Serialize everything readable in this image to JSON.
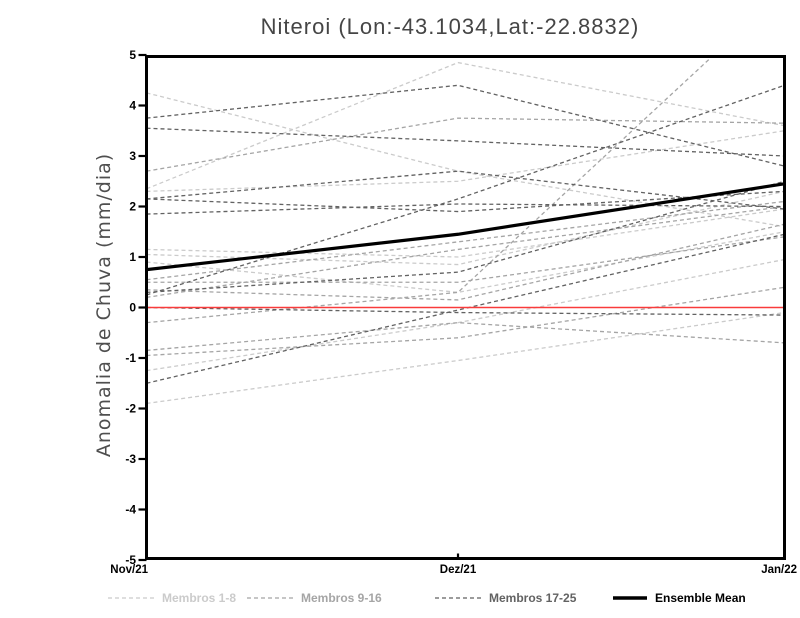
{
  "chart_data": {
    "type": "line",
    "title": "Niteroi (Lon:-43.1034,Lat:-22.8832)",
    "ylabel": "Anomalia de Chuva (mm/dia)",
    "x_categories": [
      "Nov/21",
      "Dez/21",
      "Jan/22"
    ],
    "ylim": [
      -5,
      5
    ],
    "y_ticks": [
      5,
      4,
      3,
      2,
      1,
      0,
      -1,
      -2,
      -3,
      -4,
      -5
    ],
    "grid": false,
    "legend_position": "bottom",
    "frame_color": "#000000",
    "zero_line_color": "#f93b3b",
    "groups": [
      {
        "name": "Membros 1-8",
        "color": "#cbcbcb",
        "style": "dashed"
      },
      {
        "name": "Membros 9-16",
        "color": "#a5a5a5",
        "style": "dashed"
      },
      {
        "name": "Membros 17-25",
        "color": "#626262",
        "style": "dashed"
      }
    ],
    "members": [
      {
        "group": 0,
        "values": [
          4.25,
          2.7,
          1.6
        ]
      },
      {
        "group": 0,
        "values": [
          2.35,
          4.85,
          3.6
        ]
      },
      {
        "group": 0,
        "values": [
          2.3,
          2.5,
          3.5
        ]
      },
      {
        "group": 0,
        "values": [
          1.15,
          1.0,
          1.95
        ]
      },
      {
        "group": 0,
        "values": [
          1.05,
          0.85,
          2.3
        ]
      },
      {
        "group": 0,
        "values": [
          0.9,
          0.3,
          1.5
        ]
      },
      {
        "group": 0,
        "values": [
          -1.25,
          -0.3,
          0.95
        ]
      },
      {
        "group": 0,
        "values": [
          -1.9,
          -1.05,
          -0.1
        ]
      },
      {
        "group": 1,
        "values": [
          2.7,
          3.75,
          3.65
        ]
      },
      {
        "group": 1,
        "values": [
          0.55,
          1.3,
          2.1
        ]
      },
      {
        "group": 1,
        "values": [
          0.5,
          0.5,
          1.4
        ]
      },
      {
        "group": 1,
        "values": [
          0.2,
          1.15,
          2.0
        ]
      },
      {
        "group": 1,
        "values": [
          -0.3,
          0.3,
          6.3
        ]
      },
      {
        "group": 1,
        "values": [
          -0.85,
          -0.3,
          -0.7
        ]
      },
      {
        "group": 1,
        "values": [
          -0.95,
          -0.6,
          0.4
        ]
      },
      {
        "group": 1,
        "values": [
          0.35,
          0.15,
          1.65
        ]
      },
      {
        "group": 2,
        "values": [
          3.55,
          3.3,
          3.0
        ]
      },
      {
        "group": 2,
        "values": [
          2.15,
          1.9,
          2.3
        ]
      },
      {
        "group": 2,
        "values": [
          1.85,
          2.05,
          2.0
        ]
      },
      {
        "group": 2,
        "values": [
          0.25,
          2.15,
          4.4
        ]
      },
      {
        "group": 2,
        "values": [
          0.0,
          -0.1,
          -0.15
        ]
      },
      {
        "group": 2,
        "values": [
          -1.5,
          -0.05,
          1.45
        ]
      },
      {
        "group": 2,
        "values": [
          3.75,
          4.4,
          2.8
        ]
      },
      {
        "group": 2,
        "values": [
          2.15,
          2.7,
          1.95
        ]
      },
      {
        "group": 2,
        "values": [
          0.3,
          0.7,
          2.5
        ]
      }
    ],
    "ensemble_mean": {
      "name": "Ensemble Mean",
      "color": "#000000",
      "values": [
        0.75,
        1.45,
        2.45
      ]
    }
  }
}
